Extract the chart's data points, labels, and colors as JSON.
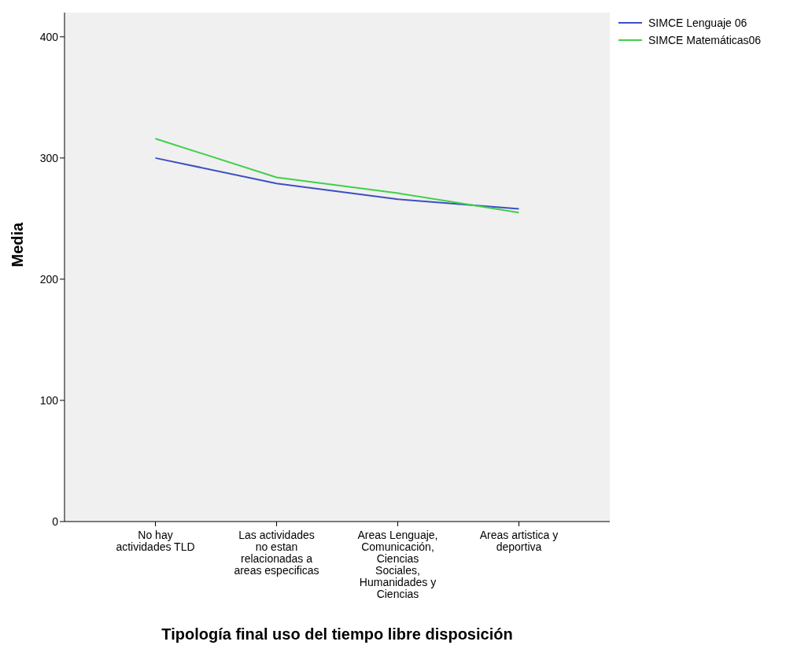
{
  "chart_data": {
    "type": "line",
    "xlabel": "Tipología final uso del tiempo libre disposición",
    "ylabel": "Media",
    "categories": [
      "No hay actividades TLD",
      "Las actividades no estan relacionadas a areas especificas",
      "Areas Lenguaje, Comunicación, Ciencias Sociales, Humanidades y Ciencias",
      "Areas artistica y deportiva"
    ],
    "series": [
      {
        "name": "SIMCE Lenguaje 06",
        "color": "#3c4fc4",
        "values": [
          300,
          279,
          266,
          258
        ]
      },
      {
        "name": "SIMCE Matemáticas06",
        "color": "#3fd04a",
        "values": [
          316,
          284,
          271,
          255
        ]
      }
    ],
    "ylim": [
      0,
      420
    ],
    "yticks": [
      0,
      100,
      200,
      300,
      400
    ],
    "grid": false,
    "legend": "top right",
    "marker": "none",
    "line_style": "solid"
  }
}
